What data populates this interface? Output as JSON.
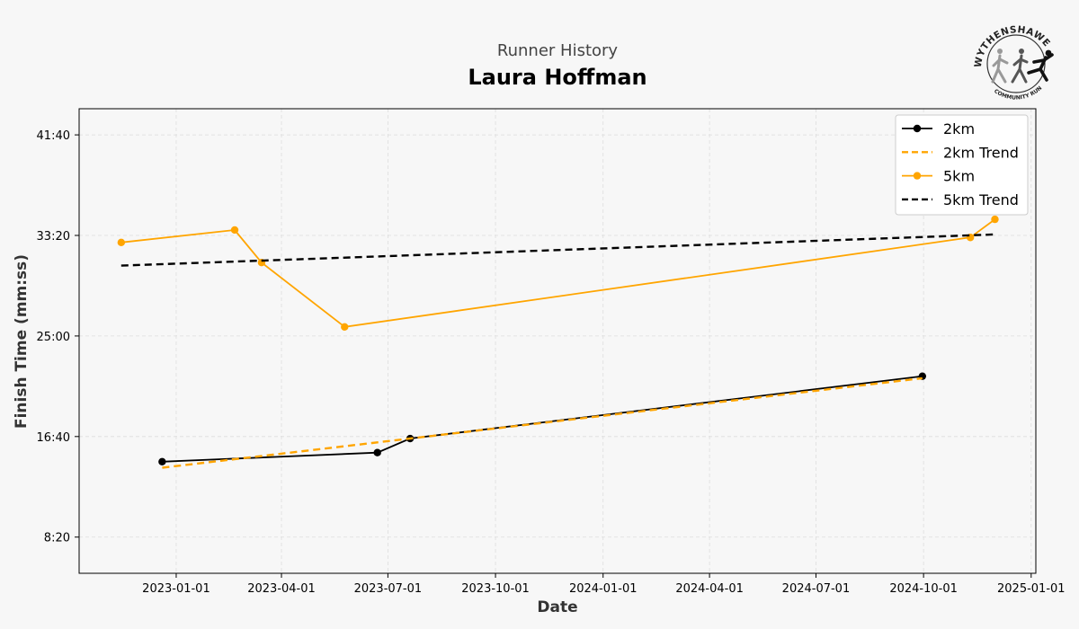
{
  "header": {
    "subtitle": "Runner History",
    "title": "Laura Hoffman"
  },
  "logo": {
    "text_top": "WYTHENSHAWE",
    "text_bottom": "COMMUNITY RUN"
  },
  "colors": {
    "background": "#f7f7f7",
    "series_2km": "#000000",
    "series_5km": "#ffa500",
    "grid": "#dddddd"
  },
  "chart_data": {
    "type": "line",
    "xlabel": "Date",
    "ylabel": "Finish Time (mm:ss)",
    "x_axis_type": "date",
    "xlim": [
      "2022-10-10",
      "2025-01-05"
    ],
    "x_ticks": [
      "2023-01-01",
      "2023-04-01",
      "2023-07-01",
      "2023-10-01",
      "2024-01-01",
      "2024-04-01",
      "2024-07-01",
      "2024-10-01",
      "2025-01-01"
    ],
    "ylim_seconds": [
      320,
      2630
    ],
    "y_ticks": [
      {
        "seconds": 500,
        "label": "8:20"
      },
      {
        "seconds": 1000,
        "label": "16:40"
      },
      {
        "seconds": 1500,
        "label": "25:00"
      },
      {
        "seconds": 2000,
        "label": "33:20"
      },
      {
        "seconds": 2500,
        "label": "41:40"
      }
    ],
    "grid": true,
    "legend_position": "top-right",
    "legend": [
      "2km",
      "2km Trend",
      "5km",
      "5km Trend"
    ],
    "series": [
      {
        "name": "2km",
        "style": "solid-markers",
        "color": "#000000",
        "points": [
          {
            "date": "2022-12-20",
            "seconds": 875
          },
          {
            "date": "2023-06-22",
            "seconds": 920
          },
          {
            "date": "2023-07-20",
            "seconds": 990
          },
          {
            "date": "2024-09-30",
            "seconds": 1300
          }
        ]
      },
      {
        "name": "2km Trend",
        "style": "dashed",
        "color": "#ffa500",
        "points": [
          {
            "date": "2022-12-20",
            "seconds": 845
          },
          {
            "date": "2024-09-30",
            "seconds": 1290
          }
        ]
      },
      {
        "name": "5km",
        "style": "solid-markers",
        "color": "#ffa500",
        "points": [
          {
            "date": "2022-11-15",
            "seconds": 1965
          },
          {
            "date": "2023-02-20",
            "seconds": 2027
          },
          {
            "date": "2023-03-15",
            "seconds": 1865
          },
          {
            "date": "2023-05-25",
            "seconds": 1545
          },
          {
            "date": "2024-11-10",
            "seconds": 1990
          },
          {
            "date": "2024-12-01",
            "seconds": 2080
          }
        ]
      },
      {
        "name": "5km Trend",
        "style": "dashed",
        "color": "#000000",
        "points": [
          {
            "date": "2022-11-15",
            "seconds": 1850
          },
          {
            "date": "2024-12-01",
            "seconds": 2005
          }
        ]
      }
    ]
  }
}
